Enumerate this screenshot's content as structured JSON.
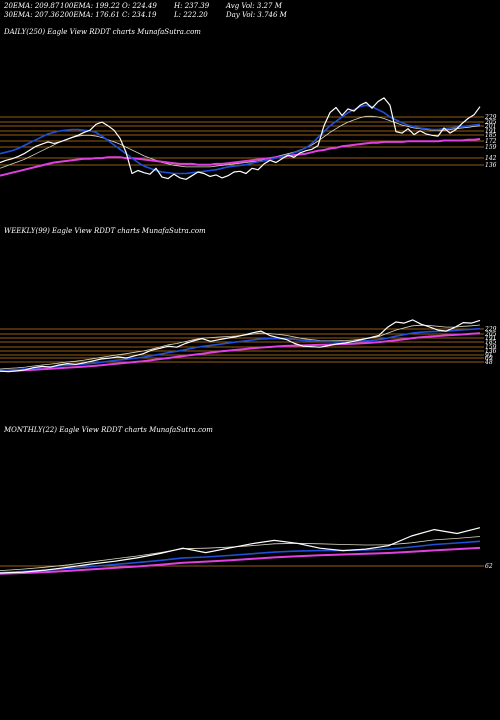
{
  "stats": {
    "row1": [
      "20EMA: 209.87",
      "100EMA: 199.22",
      "O: 224.49",
      "H: 237.39",
      "Avg Vol: 3.27 M"
    ],
    "row2": [
      "30EMA: 207.36",
      "200EMA: 176.61",
      "C: 234.19",
      "L: 222.20",
      "Day Vol: 3.746  M"
    ]
  },
  "colors": {
    "background": "#000000",
    "price": "#ffffff",
    "ema_short": "#1e4fd8",
    "ema_long": "#e040e0",
    "ema_mid": "#d8d8c0",
    "level_lines": "#c77a1c",
    "label_text": "#ffffff"
  },
  "chart_data": [
    {
      "type": "line",
      "panel": "daily",
      "title": "DAILY(250) Eagle   View  RDDT charts MunafaSutra.com",
      "level_labels": [
        "229",
        "205",
        "201",
        "191",
        "185",
        "172",
        "159",
        "142",
        "136"
      ],
      "price": [
        158,
        161,
        163,
        166,
        170,
        175,
        180,
        183,
        186,
        184,
        186,
        189,
        192,
        195,
        199,
        202,
        210,
        213,
        208,
        202,
        191,
        172,
        143,
        147,
        144,
        142,
        150,
        138,
        136,
        142,
        137,
        135,
        140,
        145,
        143,
        139,
        141,
        137,
        140,
        145,
        146,
        143,
        150,
        148,
        156,
        161,
        158,
        163,
        168,
        165,
        171,
        174,
        176,
        181,
        208,
        226,
        233,
        222,
        231,
        228,
        236,
        240,
        232,
        241,
        246,
        236,
        200,
        198,
        204,
        196,
        201,
        197,
        195,
        194,
        205,
        198,
        203,
        211,
        218,
        223,
        234
      ],
      "ema_blue": [
        170,
        172,
        174,
        177,
        181,
        185,
        189,
        193,
        197,
        199,
        201,
        202,
        203,
        203,
        202,
        201,
        199,
        194,
        188,
        182,
        176,
        170,
        164,
        158,
        153,
        150,
        147,
        145,
        144,
        143,
        143,
        143,
        144,
        145,
        146,
        147,
        148,
        150,
        152,
        153,
        154,
        155,
        157,
        159,
        160,
        162,
        164,
        166,
        168,
        171,
        174,
        178,
        184,
        192,
        200,
        208,
        214,
        220,
        226,
        230,
        234,
        236,
        234,
        230,
        226,
        220,
        216,
        212,
        209,
        207,
        205,
        204,
        203,
        203,
        204,
        205,
        206,
        207,
        208,
        209,
        210
      ],
      "ema_magenta": [
        140,
        142,
        144,
        146,
        148,
        150,
        152,
        154,
        156,
        158,
        159,
        160,
        161,
        162,
        163,
        163,
        164,
        164,
        165,
        165,
        165,
        164,
        164,
        163,
        162,
        161,
        160,
        159,
        158,
        157,
        156,
        156,
        156,
        155,
        155,
        155,
        156,
        156,
        157,
        158,
        159,
        160,
        161,
        162,
        163,
        164,
        165,
        166,
        167,
        168,
        169,
        170,
        172,
        174,
        175,
        177,
        178,
        180,
        181,
        182,
        183,
        184,
        185,
        185,
        186,
        186,
        186,
        186,
        187,
        187,
        187,
        187,
        187,
        187,
        188,
        188,
        188,
        188,
        189,
        189,
        190
      ],
      "ema_mid": [
        150,
        153,
        156,
        159,
        162,
        166,
        170,
        174,
        178,
        182,
        186,
        189,
        192,
        194,
        195,
        195,
        194,
        192,
        189,
        186,
        183,
        179,
        175,
        171,
        167,
        164,
        161,
        158,
        156,
        154,
        153,
        152,
        152,
        152,
        152,
        152,
        153,
        154,
        155,
        156,
        157,
        158,
        159,
        160,
        162,
        164,
        166,
        168,
        170,
        172,
        175,
        178,
        182,
        187,
        193,
        199,
        204,
        209,
        213,
        216,
        219,
        221,
        221,
        220,
        218,
        215,
        212,
        209,
        207,
        205,
        204,
        203,
        202,
        202,
        202,
        203,
        204,
        205,
        206,
        207,
        208
      ]
    },
    {
      "type": "line",
      "panel": "weekly",
      "title": "WEEKLY(99) Eagle   View  RDDT charts MunafaSutra.com",
      "level_labels": [
        "229",
        "205",
        "191",
        "185",
        "159",
        "136",
        "91",
        "69",
        "48"
      ],
      "price": [
        47,
        45,
        48,
        52,
        60,
        65,
        62,
        70,
        75,
        72,
        78,
        85,
        92,
        95,
        100,
        96,
        104,
        112,
        125,
        132,
        140,
        136,
        150,
        160,
        168,
        158,
        164,
        170,
        175,
        182,
        190,
        196,
        180,
        172,
        165,
        150,
        140,
        138,
        136,
        142,
        148,
        152,
        158,
        165,
        172,
        180,
        210,
        230,
        226,
        238,
        222,
        212,
        200,
        196,
        210,
        228,
        226,
        236
      ],
      "ema_blue": [
        50,
        51,
        53,
        55,
        58,
        61,
        63,
        66,
        69,
        71,
        73,
        76,
        80,
        84,
        88,
        91,
        95,
        99,
        104,
        110,
        116,
        121,
        127,
        133,
        139,
        143,
        147,
        151,
        155,
        159,
        163,
        167,
        168,
        168,
        167,
        165,
        162,
        160,
        158,
        157,
        156,
        156,
        157,
        159,
        161,
        164,
        170,
        177,
        183,
        189,
        192,
        194,
        195,
        196,
        198,
        201,
        203,
        205
      ],
      "ema_magenta": [
        48,
        48,
        49,
        50,
        52,
        54,
        56,
        58,
        60,
        62,
        64,
        66,
        69,
        72,
        75,
        78,
        81,
        84,
        88,
        92,
        96,
        100,
        104,
        108,
        112,
        116,
        120,
        123,
        126,
        129,
        132,
        135,
        137,
        139,
        141,
        142,
        143,
        144,
        145,
        146,
        147,
        148,
        149,
        151,
        153,
        155,
        158,
        162,
        166,
        170,
        173,
        176,
        178,
        180,
        182,
        184,
        186,
        188
      ],
      "ema_mid": [
        55,
        57,
        59,
        62,
        66,
        70,
        73,
        77,
        81,
        84,
        88,
        93,
        98,
        103,
        108,
        112,
        117,
        122,
        129,
        137,
        145,
        150,
        157,
        164,
        170,
        172,
        174,
        176,
        178,
        181,
        185,
        189,
        187,
        184,
        180,
        174,
        168,
        164,
        161,
        160,
        160,
        161,
        163,
        166,
        170,
        176,
        188,
        200,
        208,
        216,
        218,
        217,
        214,
        211,
        211,
        214,
        216,
        219
      ]
    },
    {
      "type": "line",
      "panel": "monthly",
      "title": "MONTHLY(22) Eagle   View  RDDT charts MunafaSutra.com",
      "level_labels": [
        "62"
      ],
      "price": [
        48,
        52,
        60,
        72,
        85,
        96,
        110,
        128,
        150,
        132,
        150,
        168,
        182,
        170,
        150,
        140,
        146,
        160,
        200,
        226,
        210,
        234
      ],
      "ema_blue": [
        50,
        54,
        60,
        67,
        75,
        83,
        91,
        100,
        110,
        114,
        120,
        127,
        134,
        138,
        140,
        141,
        143,
        146,
        155,
        165,
        171,
        178
      ],
      "ema_mid": [
        58,
        64,
        72,
        82,
        94,
        106,
        118,
        132,
        148,
        150,
        154,
        160,
        168,
        170,
        168,
        165,
        163,
        164,
        172,
        184,
        190,
        198
      ],
      "ema_magenta": [
        45,
        48,
        52,
        57,
        63,
        69,
        75,
        82,
        90,
        95,
        100,
        106,
        112,
        117,
        121,
        124,
        127,
        130,
        135,
        141,
        146,
        151
      ]
    }
  ]
}
